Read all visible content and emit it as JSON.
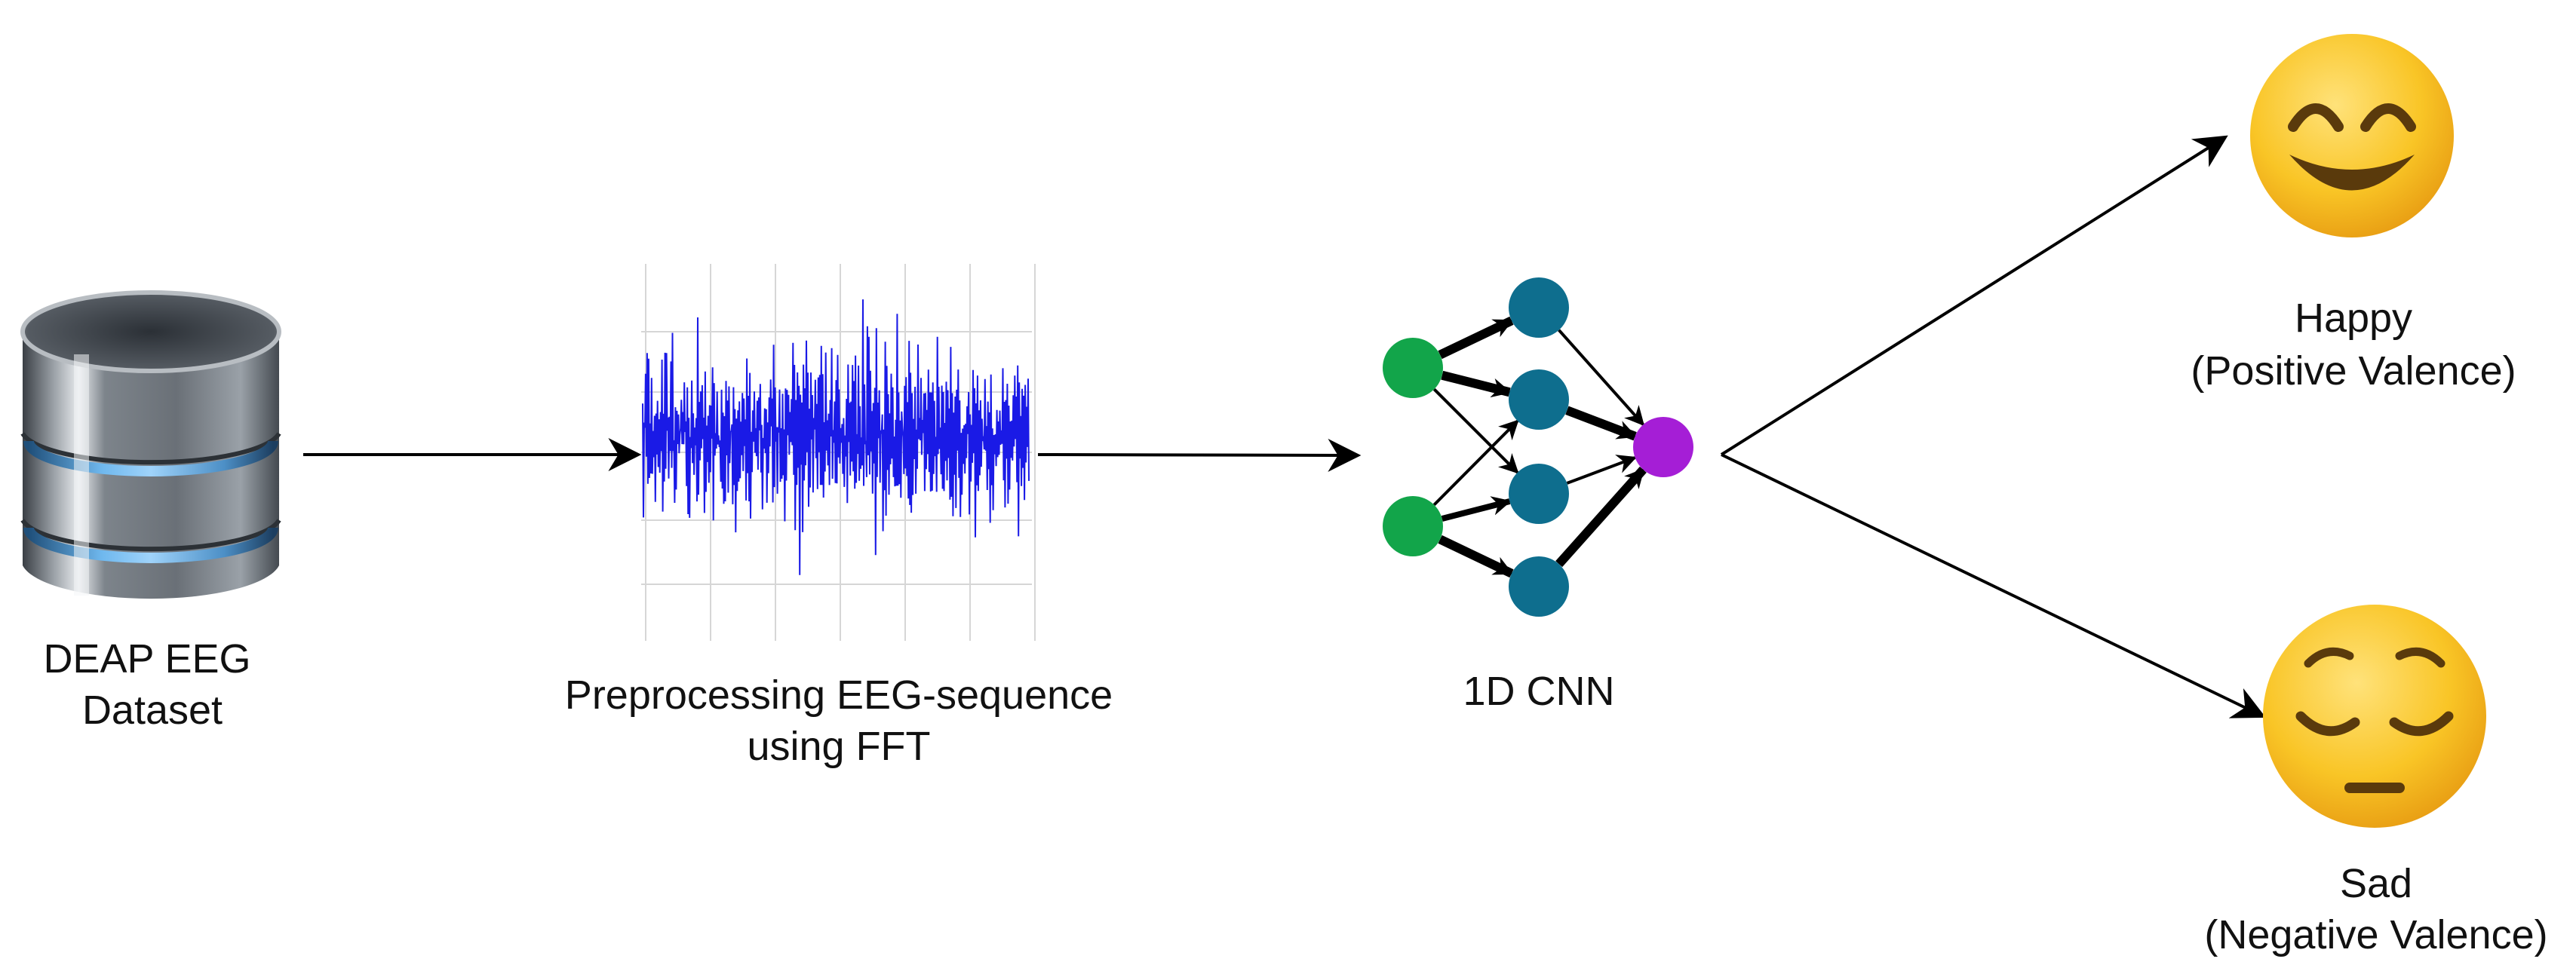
{
  "nodes": {
    "dataset": {
      "label_line1": "DEAP EEG",
      "label_line2": "Dataset",
      "icon": "database-icon"
    },
    "preprocess": {
      "label_line1": "Preprocessing EEG-sequence",
      "label_line2": "using FFT",
      "icon": "eeg-signal-plot"
    },
    "model": {
      "label": "1D CNN",
      "icon": "neural-network-icon"
    },
    "happy": {
      "label_line1": "Happy",
      "label_line2": "(Positive Valence)",
      "icon": "smiling-face-icon"
    },
    "sad": {
      "label_line1": "Sad",
      "label_line2": "(Negative Valence)",
      "icon": "pensive-face-icon"
    }
  },
  "colors": {
    "signal": "#1a1ae6",
    "input_neuron": "#12a54a",
    "hidden_neuron": "#0e6e8e",
    "output_neuron": "#a51ed6",
    "arrow": "#000000",
    "emoji_face": "#f7c11e",
    "emoji_feature": "#5a3a0c"
  }
}
